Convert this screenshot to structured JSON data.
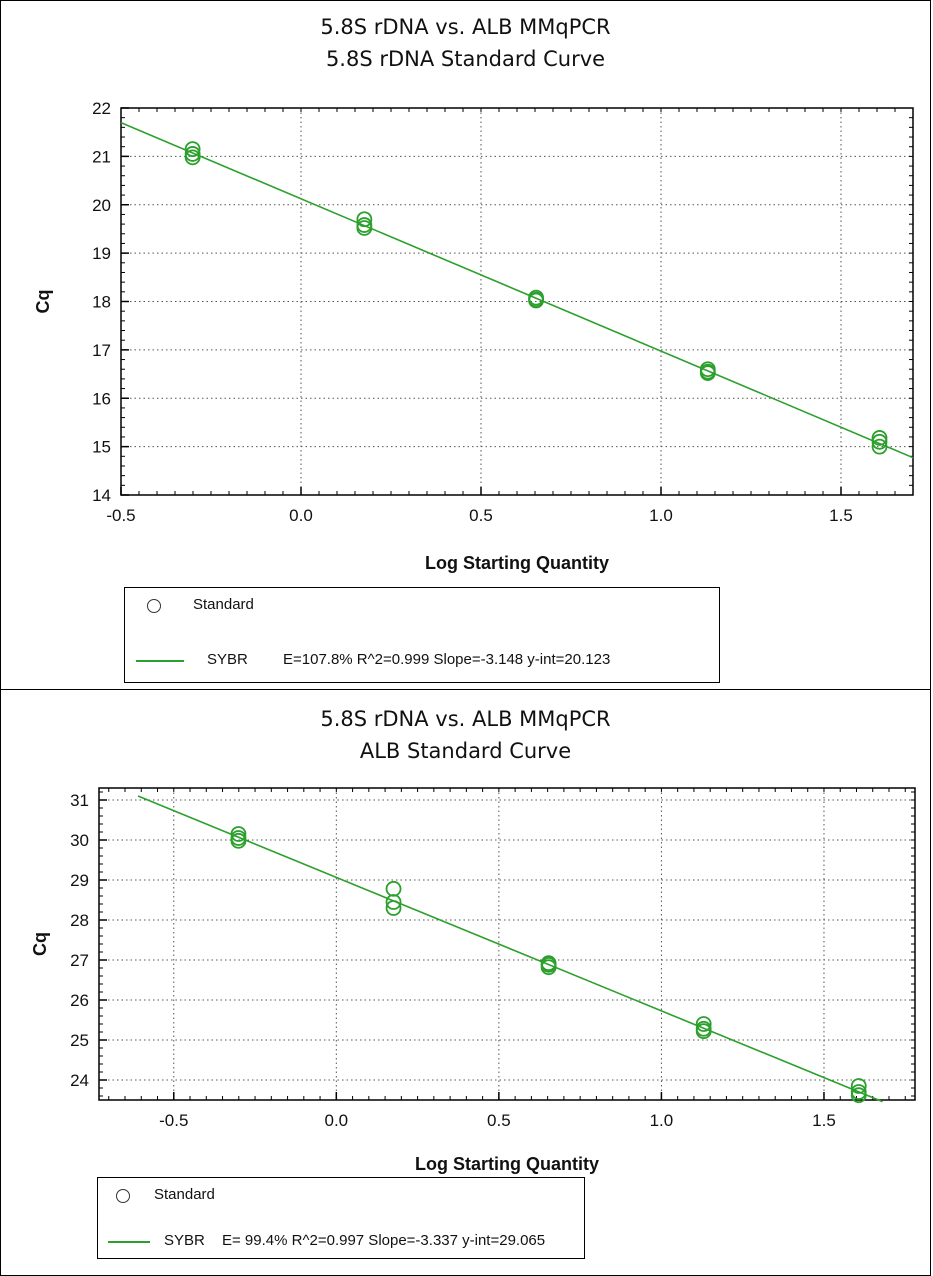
{
  "chart_data": [
    {
      "type": "scatter",
      "title": "5.8S rDNA vs. ALB MMqPCR",
      "subtitle": "5.8S rDNA Standard Curve",
      "xlabel": "Log Starting Quantity",
      "ylabel": "Cq",
      "xlim": [
        -0.5,
        1.7
      ],
      "ylim": [
        14,
        22
      ],
      "xticks": [
        -0.5,
        0.0,
        0.5,
        1.0,
        1.5
      ],
      "xtick_labels": [
        "-0.5",
        "0.0",
        "0.5",
        "1.0",
        "1.5"
      ],
      "yticks": [
        14,
        15,
        16,
        17,
        18,
        19,
        20,
        21,
        22
      ],
      "ytick_labels": [
        "14",
        "15",
        "16",
        "17",
        "18",
        "19",
        "20",
        "21",
        "22"
      ],
      "grid": true,
      "colors": {
        "series": "#2ca02c"
      },
      "series": [
        {
          "name": "Standard",
          "x": [
            -0.301,
            -0.301,
            -0.301,
            0.176,
            0.176,
            0.176,
            0.653,
            0.653,
            0.653,
            1.13,
            1.13,
            1.13,
            1.607,
            1.607,
            1.607
          ],
          "y": [
            21.15,
            21.05,
            20.98,
            19.7,
            19.58,
            19.52,
            18.08,
            18.04,
            18.02,
            16.6,
            16.55,
            16.52,
            15.18,
            15.1,
            15.0
          ]
        }
      ],
      "fit": {
        "name": "SYBR",
        "slope": -3.148,
        "intercept": 20.123,
        "x_range": [
          -0.5,
          1.7
        ]
      },
      "legend": {
        "placement": "bottom",
        "items": [
          {
            "label": "Standard",
            "kind": "marker"
          },
          {
            "label": "SYBR",
            "kind": "line",
            "stats": "E=107.8% R^2=0.999 Slope=-3.148 y-int=20.123"
          }
        ]
      }
    },
    {
      "type": "scatter",
      "title": "5.8S rDNA vs. ALB MMqPCR",
      "subtitle": "ALB Standard Curve",
      "xlabel": "Log Starting Quantity",
      "ylabel": "Cq",
      "xlim": [
        -0.73,
        1.78
      ],
      "ylim": [
        23.5,
        31.3
      ],
      "xticks": [
        -0.5,
        0.0,
        0.5,
        1.0,
        1.5
      ],
      "xtick_labels": [
        "-0.5",
        "0.0",
        "0.5",
        "1.0",
        "1.5"
      ],
      "yticks": [
        24,
        25,
        26,
        27,
        28,
        29,
        30,
        31
      ],
      "ytick_labels": [
        "24",
        "25",
        "26",
        "27",
        "28",
        "29",
        "30",
        "31"
      ],
      "grid": true,
      "colors": {
        "series": "#2ca02c"
      },
      "series": [
        {
          "name": "Standard",
          "x": [
            -0.301,
            -0.301,
            -0.301,
            0.176,
            0.176,
            0.176,
            0.653,
            0.653,
            0.653,
            1.13,
            1.13,
            1.13,
            1.607,
            1.607,
            1.607
          ],
          "y": [
            30.15,
            30.05,
            29.98,
            28.78,
            28.45,
            28.3,
            26.92,
            26.88,
            26.82,
            25.4,
            25.28,
            25.22,
            23.85,
            23.7,
            23.62
          ]
        }
      ],
      "fit": {
        "name": "SYBR",
        "slope": -3.337,
        "intercept": 29.065,
        "x_range": [
          -0.61,
          1.68
        ]
      },
      "legend": {
        "placement": "bottom-left",
        "items": [
          {
            "label": "Standard",
            "kind": "marker"
          },
          {
            "label": "SYBR",
            "kind": "line",
            "stats": "E= 99.4% R^2=0.997 Slope=-3.337 y-int=29.065"
          }
        ]
      }
    }
  ]
}
